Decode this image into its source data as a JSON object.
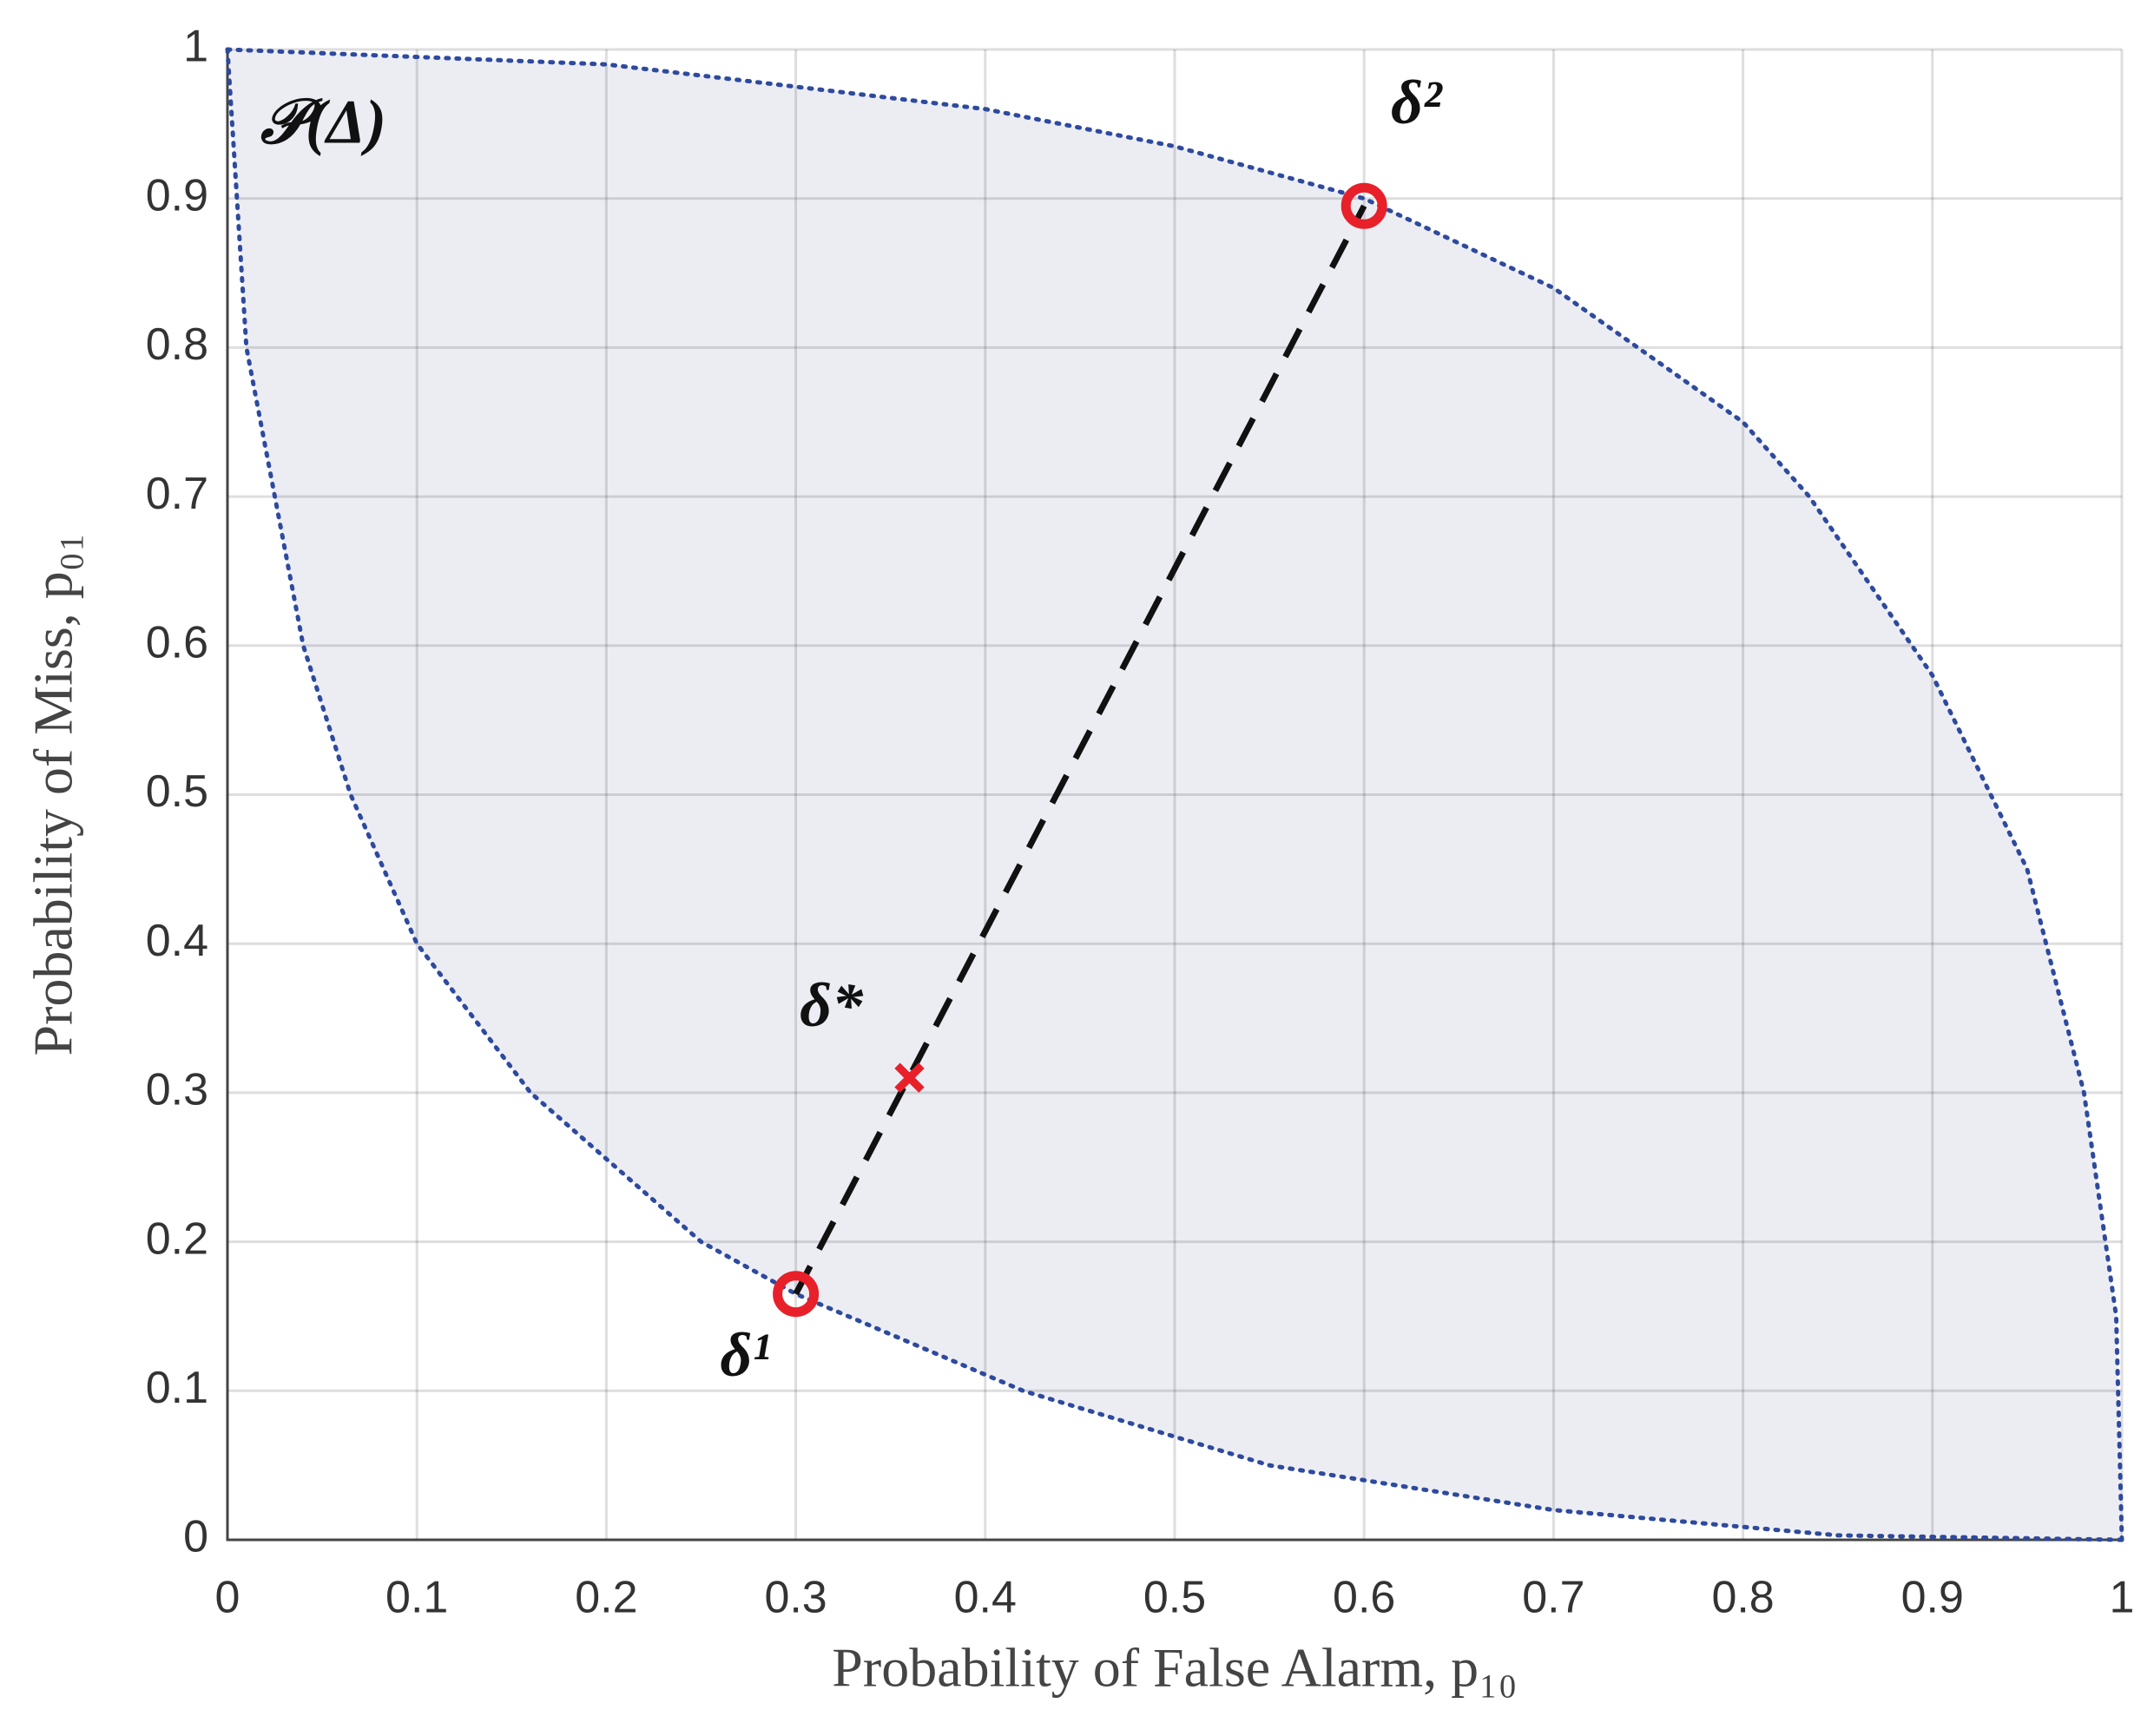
{
  "chart_data": {
    "type": "scatter",
    "xlabel": "Probability of False Alarm, p₁₀",
    "ylabel": "Probability of Miss, p₀₁",
    "region_label": "𝒫(Δ)",
    "xlim": [
      0,
      1
    ],
    "ylim": [
      0,
      1
    ],
    "xticks": [
      0,
      0.1,
      0.2,
      0.3,
      0.4,
      0.5,
      0.6,
      0.7,
      0.8,
      0.9,
      1
    ],
    "yticks": [
      0,
      0.1,
      0.2,
      0.3,
      0.4,
      0.5,
      0.6,
      0.7,
      0.8,
      0.9,
      1
    ],
    "grid": true,
    "region": {
      "fill": "#ecedf3",
      "edge_color": "#2e4a9e",
      "lower": {
        "x": [
          0,
          0.01,
          0.04,
          0.065,
          0.1,
          0.16,
          0.25,
          0.3,
          0.42,
          0.55,
          0.7,
          0.85,
          1
        ],
        "y": [
          1,
          0.8,
          0.6,
          0.5,
          0.4,
          0.3,
          0.2,
          0.165,
          0.1,
          0.05,
          0.02,
          0.003,
          0
        ]
      },
      "upper": {
        "x": [
          0,
          0.2,
          0.4,
          0.5,
          0.6,
          0.7,
          0.8,
          0.835,
          0.9,
          0.95,
          0.98,
          0.997,
          1
        ],
        "y": [
          1,
          0.99,
          0.96,
          0.935,
          0.9,
          0.84,
          0.75,
          0.7,
          0.58,
          0.45,
          0.3,
          0.15,
          0
        ]
      }
    },
    "points": [
      {
        "label": "δ¹",
        "x": 0.3,
        "y": 0.165,
        "marker": "o",
        "color": "#e8202a"
      },
      {
        "label": "δ²",
        "x": 0.6,
        "y": 0.895,
        "marker": "o",
        "color": "#e8202a"
      },
      {
        "label": "δ*",
        "x": 0.36,
        "y": 0.31,
        "marker": "x",
        "color": "#e8202a"
      }
    ],
    "segment_color": "#111111"
  }
}
